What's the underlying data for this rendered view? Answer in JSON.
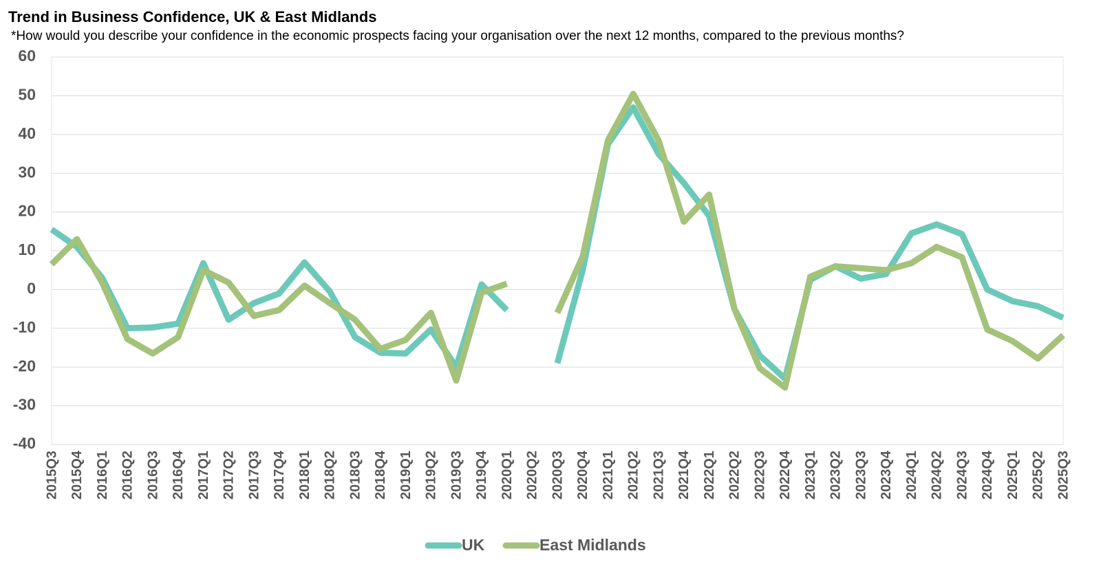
{
  "chart_data": {
    "type": "line",
    "title": "Trend in Business Confidence, UK & East Midlands",
    "subtitle": "*How would you describe your confidence in the economic prospects facing your organisation over the next 12 months, compared to the previous months?",
    "categories": [
      "2015Q3",
      "2015Q4",
      "2016Q1",
      "2016Q2",
      "2016Q3",
      "2016Q4",
      "2017Q1",
      "2017Q2",
      "2017Q3",
      "2017Q4",
      "2018Q1",
      "2018Q2",
      "2018Q3",
      "2018Q4",
      "2019Q1",
      "2019Q2",
      "2019Q3",
      "2019Q4",
      "2020Q1",
      "2020Q2",
      "2020Q3",
      "2020Q4",
      "2021Q1",
      "2021Q2",
      "2021Q3",
      "2021Q4",
      "2022Q1",
      "2022Q2",
      "2022Q3",
      "2022Q4",
      "2023Q1",
      "2023Q2",
      "2023Q3",
      "2023Q4",
      "2024Q1",
      "2024Q2",
      "2024Q3",
      "2024Q4",
      "2025Q1",
      "2025Q2",
      "2025Q3"
    ],
    "series": [
      {
        "name": "UK",
        "color": "#6cc9b9",
        "values": [
          15.5,
          11,
          3,
          -10,
          -9.8,
          -8.8,
          6.8,
          -7.8,
          -3.5,
          -1,
          7,
          -0.5,
          -12.3,
          -16.3,
          -16.5,
          -10.3,
          -20,
          1.3,
          -5.3,
          null,
          -19,
          5,
          37.5,
          47,
          35,
          27.5,
          19,
          -5,
          -17,
          -23,
          2.5,
          6,
          2.8,
          4,
          14.5,
          16.8,
          14.3,
          0,
          -3,
          -4.3,
          -7.3
        ]
      },
      {
        "name": "East Midlands",
        "color": "#a4c27a",
        "values": [
          6.5,
          13,
          1.8,
          -12.8,
          -16.5,
          -12.3,
          5,
          1.8,
          -6.8,
          -5.3,
          1,
          -3.5,
          -7.8,
          -15.3,
          -13,
          -6,
          -23.5,
          -0.8,
          1.5,
          null,
          -6,
          8.5,
          38.5,
          50.5,
          38.5,
          17.5,
          24.5,
          -5,
          -20.3,
          -25.3,
          3.3,
          6,
          5.5,
          5,
          6.8,
          11,
          8.3,
          -10.3,
          -13.3,
          -17.8,
          -11.8
        ]
      }
    ],
    "ylim": [
      -40,
      60
    ],
    "yticks": [
      -40,
      -30,
      -20,
      -10,
      0,
      10,
      20,
      30,
      40,
      50,
      60
    ],
    "grid": true
  }
}
